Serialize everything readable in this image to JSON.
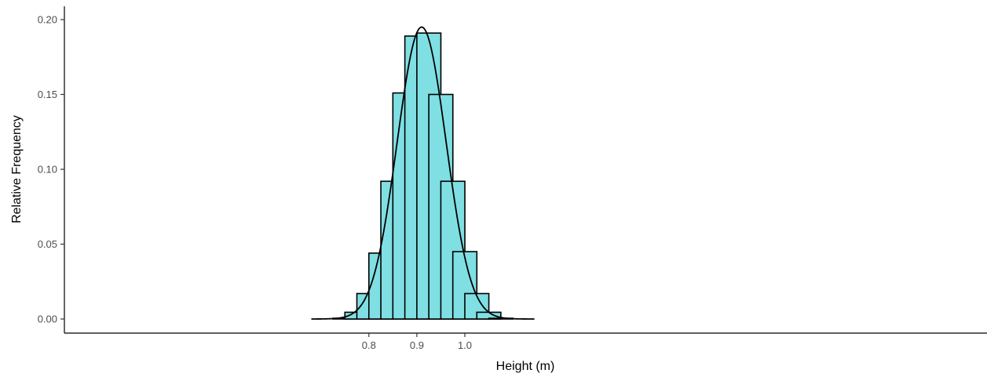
{
  "chart_data": {
    "type": "bar",
    "xlabel": "Height (m)",
    "ylabel": "Relative Frequency",
    "ylim": [
      0,
      0.2
    ],
    "xlim": [
      0.655,
      1.155
    ],
    "grid": false,
    "y_ticks": [
      {
        "value": 0.0,
        "label": "0.00"
      },
      {
        "value": 0.05,
        "label": "0.05"
      },
      {
        "value": 0.1,
        "label": "0.10"
      },
      {
        "value": 0.15,
        "label": "0.15"
      },
      {
        "value": 0.2,
        "label": "0.20"
      }
    ],
    "x_ticks": [
      {
        "value": 0.8,
        "label": "0.8"
      },
      {
        "value": 0.9,
        "label": "0.9"
      },
      {
        "value": 1.0,
        "label": "1.0"
      }
    ],
    "bin_width": 0.05,
    "bins": [
      {
        "x": 0.75,
        "value": 0.0005
      },
      {
        "x": 0.775,
        "value": 0.0045
      },
      {
        "x": 0.8,
        "value": 0.017
      },
      {
        "x": 0.825,
        "value": 0.044
      },
      {
        "x": 0.85,
        "value": 0.092
      },
      {
        "x": 0.875,
        "value": 0.151
      },
      {
        "x": 0.9,
        "value": 0.189
      },
      {
        "x": 0.925,
        "value": 0.191
      },
      {
        "x": 0.95,
        "value": 0.15
      },
      {
        "x": 0.975,
        "value": 0.092
      },
      {
        "x": 1.0,
        "value": 0.045
      },
      {
        "x": 1.025,
        "value": 0.017
      },
      {
        "x": 1.05,
        "value": 0.0045
      },
      {
        "x": 1.075,
        "value": 0.0005
      }
    ],
    "density_curve": {
      "type": "normal",
      "mean": 0.91,
      "sd": 0.051,
      "peak": 0.195,
      "x_range": [
        0.68,
        1.145
      ]
    },
    "colors": {
      "bar_fill": "#7fdfe3",
      "bar_stroke": "#000000",
      "curve": "#000000"
    }
  }
}
